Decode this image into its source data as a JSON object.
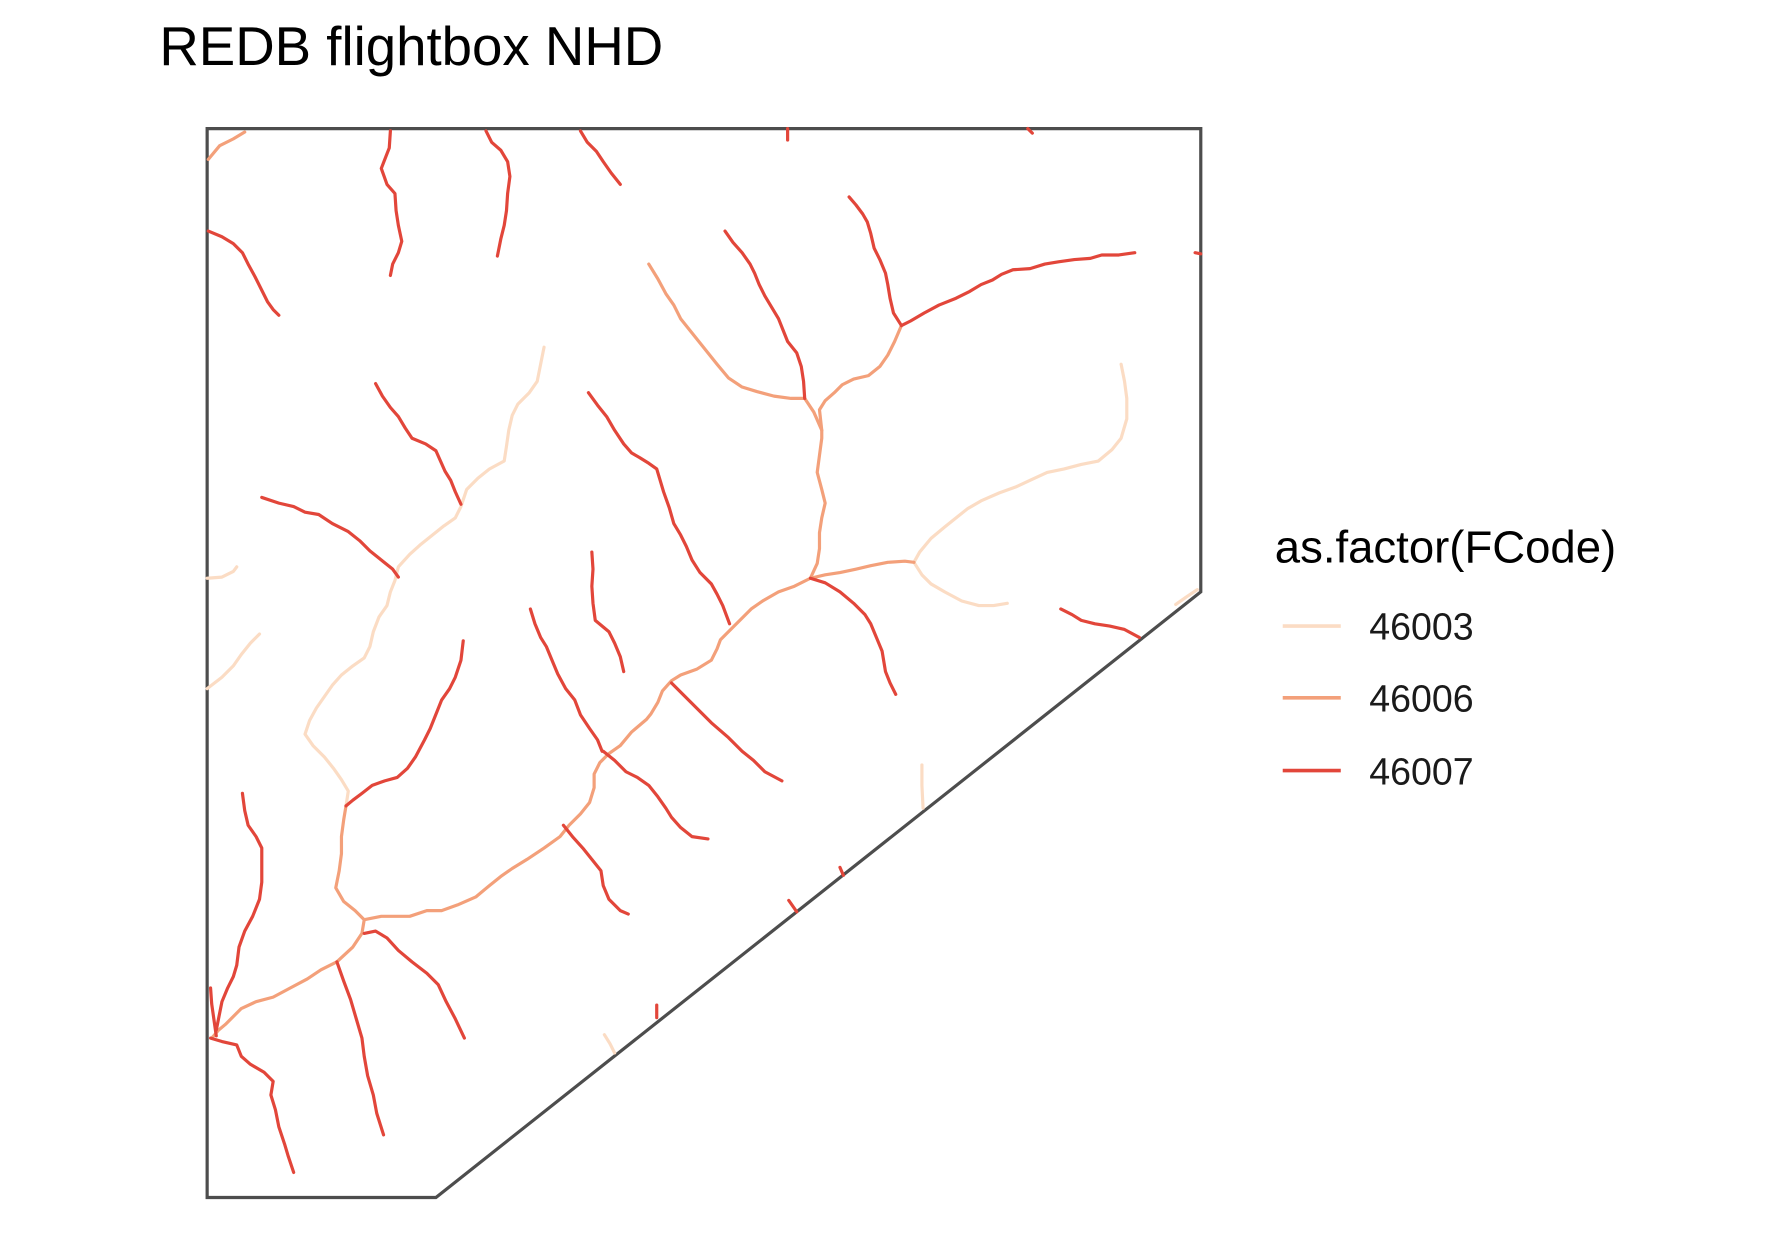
{
  "title": "REDB flightbox NHD",
  "legend": {
    "title": "as.factor(FCode)",
    "items": [
      {
        "label": "46003",
        "color": "#FBDCC4"
      },
      {
        "label": "46006",
        "color": "#F3A07A"
      },
      {
        "label": "46007",
        "color": "#E2463A"
      }
    ]
  },
  "colors": {
    "boundary": "#4D4D4D",
    "background": "#FFFFFF"
  }
}
